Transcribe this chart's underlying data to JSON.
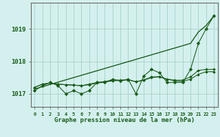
{
  "x": [
    0,
    1,
    2,
    3,
    4,
    5,
    6,
    7,
    8,
    9,
    10,
    11,
    12,
    13,
    14,
    15,
    16,
    17,
    18,
    19,
    20,
    21,
    22,
    23
  ],
  "y_main": [
    1017.1,
    1017.25,
    1017.35,
    1017.25,
    1017.0,
    1017.1,
    1017.0,
    1017.1,
    1017.35,
    1017.35,
    1017.45,
    1017.4,
    1017.45,
    1017.0,
    1017.55,
    1017.75,
    1017.65,
    1017.35,
    1017.35,
    1017.35,
    1017.75,
    1018.55,
    1019.0,
    1019.4
  ],
  "y_trend": [
    1017.15,
    1017.22,
    1017.29,
    1017.36,
    1017.43,
    1017.5,
    1017.57,
    1017.64,
    1017.71,
    1017.78,
    1017.85,
    1017.92,
    1017.99,
    1018.06,
    1018.13,
    1018.2,
    1018.27,
    1018.34,
    1018.41,
    1018.48,
    1018.55,
    1018.9,
    1019.1,
    1019.4
  ],
  "y_avg1": [
    1017.2,
    1017.3,
    1017.33,
    1017.3,
    1017.28,
    1017.27,
    1017.25,
    1017.28,
    1017.33,
    1017.36,
    1017.4,
    1017.41,
    1017.43,
    1017.37,
    1017.42,
    1017.5,
    1017.52,
    1017.45,
    1017.42,
    1017.42,
    1017.52,
    1017.72,
    1017.75,
    1017.75
  ],
  "y_avg2": [
    1017.2,
    1017.3,
    1017.33,
    1017.3,
    1017.28,
    1017.27,
    1017.25,
    1017.3,
    1017.35,
    1017.38,
    1017.42,
    1017.42,
    1017.44,
    1017.37,
    1017.43,
    1017.52,
    1017.53,
    1017.45,
    1017.4,
    1017.38,
    1017.45,
    1017.6,
    1017.68,
    1017.68
  ],
  "color": "#1a5c1a",
  "bg_color": "#d4f0ee",
  "grid_color": "#aad4cc",
  "yticks": [
    1017,
    1018,
    1019
  ],
  "ylim": [
    1016.6,
    1019.8
  ],
  "xlim": [
    -0.5,
    23.5
  ],
  "xlabel": "Graphe pression niveau de la mer (hPa)",
  "xtick_labels": [
    "0",
    "1",
    "2",
    "3",
    "4",
    "5",
    "6",
    "7",
    "8",
    "9",
    "10",
    "11",
    "12",
    "13",
    "14",
    "15",
    "16",
    "17",
    "18",
    "19",
    "20",
    "21",
    "22",
    "23"
  ]
}
